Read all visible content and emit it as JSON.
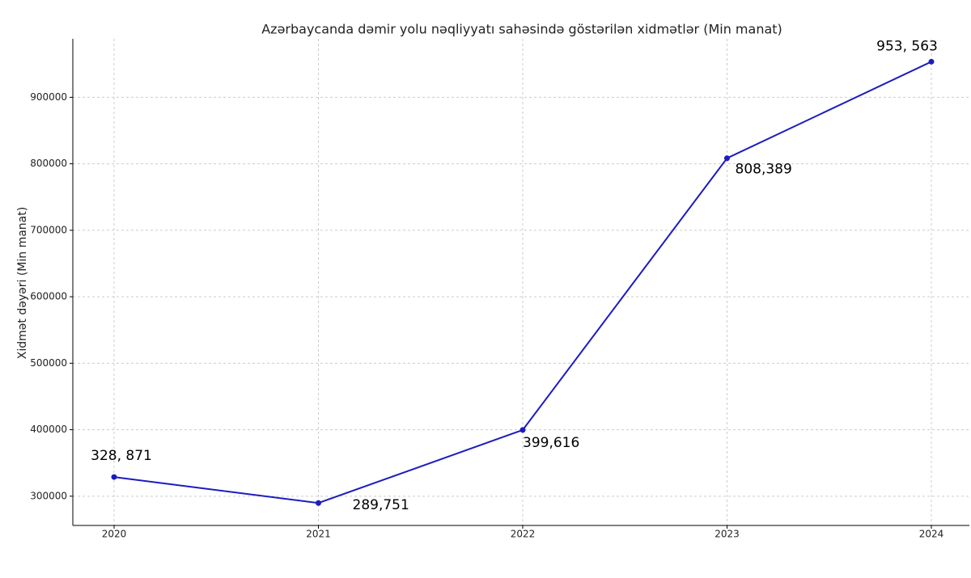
{
  "chart_data": {
    "type": "line",
    "title": "Azərbaycanda dəmir yolu nəqliyyatı sahəsində göstərilən xidmətlər (Min manat)",
    "y_label": "Xidmət dəyəri (Min manat)",
    "categories": [
      "2020",
      "2021",
      "2022",
      "2023",
      "2024"
    ],
    "series": [
      {
        "name": "Xidmət dəyəri",
        "color": "#1c1cc0",
        "values": [
          328871,
          289751,
          399616,
          808389,
          953563
        ],
        "value_labels": [
          "328, 871",
          "289,751",
          "399,616",
          "808,389",
          "953, 563"
        ]
      }
    ],
    "ylim": [
      256000,
      988000
    ],
    "yticks": [
      300000,
      400000,
      500000,
      600000,
      700000,
      800000,
      900000
    ],
    "grid": true
  }
}
